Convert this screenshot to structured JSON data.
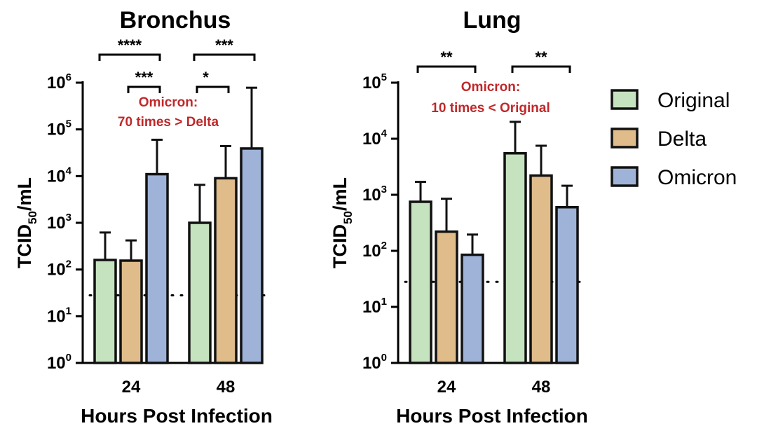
{
  "colors": {
    "original": "#c6e3bf",
    "delta": "#e0bc8a",
    "omicron": "#9fb3d8",
    "outline": "#111111",
    "annotation": "#c0282a"
  },
  "legend": {
    "position": "right",
    "items": [
      {
        "name": "Original",
        "color": "#c6e3bf"
      },
      {
        "name": "Delta",
        "color": "#e0bc8a"
      },
      {
        "name": "Omicron",
        "color": "#9fb3d8"
      }
    ]
  },
  "chart_data": [
    {
      "type": "bar",
      "title": "Bronchus",
      "xlabel": "Hours Post Infection",
      "ylabel_main": "TCID",
      "ylabel_sub": "50",
      "ylabel_tail": "/mL",
      "yscale": "log10",
      "ylim": [
        1,
        1000000
      ],
      "ytick_exponents": [
        0,
        1,
        2,
        3,
        4,
        5,
        6
      ],
      "categories": [
        "24",
        "48"
      ],
      "series": [
        {
          "name": "Original",
          "values": [
            160,
            1000
          ],
          "error_upper": [
            620,
            6500
          ]
        },
        {
          "name": "Delta",
          "values": [
            155,
            9000
          ],
          "error_upper": [
            420,
            44000
          ]
        },
        {
          "name": "Omicron",
          "values": [
            11000,
            39000
          ],
          "error_upper": [
            60000,
            780000
          ]
        }
      ],
      "limit_of_detection": 28,
      "significance": [
        {
          "category": "24",
          "from": "Original",
          "to": "Omicron",
          "label": "****",
          "level": 2
        },
        {
          "category": "24",
          "from": "Delta",
          "to": "Omicron",
          "label": "***",
          "level": 1
        },
        {
          "category": "48",
          "from": "Original",
          "to": "Omicron",
          "label": "***",
          "level": 2
        },
        {
          "category": "48",
          "from": "Original",
          "to": "Delta",
          "label": "*",
          "level": 1
        }
      ],
      "annotation": [
        "Omicron:",
        "70 times > Delta"
      ]
    },
    {
      "type": "bar",
      "title": "Lung",
      "xlabel": "Hours Post Infection",
      "ylabel_main": "TCID",
      "ylabel_sub": "50",
      "ylabel_tail": "/mL",
      "yscale": "log10",
      "ylim": [
        1,
        100000
      ],
      "ytick_exponents": [
        0,
        1,
        2,
        3,
        4,
        5
      ],
      "categories": [
        "24",
        "48"
      ],
      "series": [
        {
          "name": "Original",
          "values": [
            750,
            5500
          ],
          "error_upper": [
            1700,
            20000
          ]
        },
        {
          "name": "Delta",
          "values": [
            220,
            2200
          ],
          "error_upper": [
            850,
            7500
          ]
        },
        {
          "name": "Omicron",
          "values": [
            85,
            600
          ],
          "error_upper": [
            195,
            1450
          ]
        }
      ],
      "limit_of_detection": 28,
      "significance": [
        {
          "category": "24",
          "from": "Original",
          "to": "Omicron",
          "label": "**",
          "level": 1
        },
        {
          "category": "48",
          "from": "Original",
          "to": "Omicron",
          "label": "**",
          "level": 1
        }
      ],
      "annotation": [
        "Omicron:",
        "10 times < Original"
      ]
    }
  ]
}
